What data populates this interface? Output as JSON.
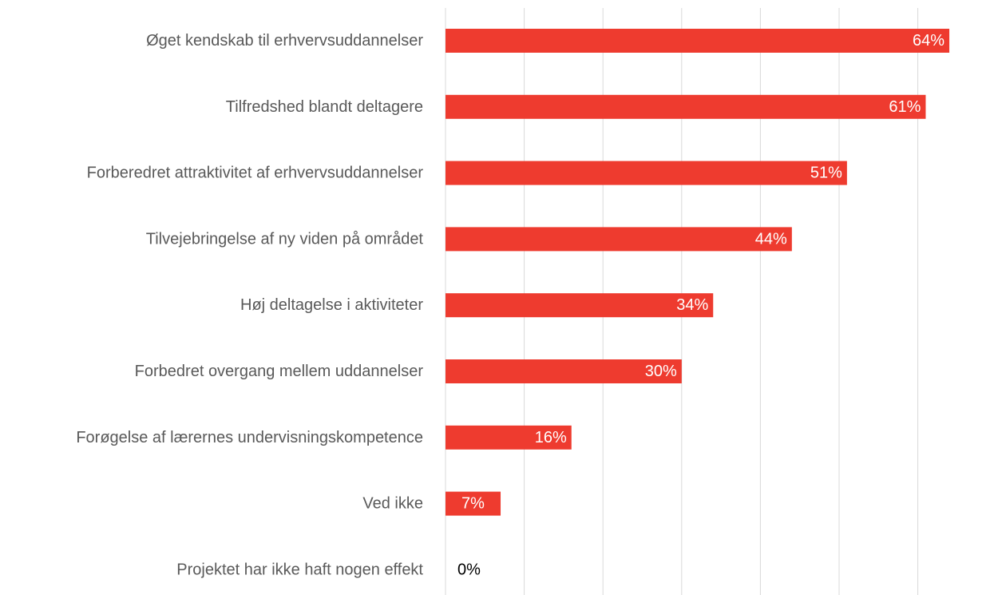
{
  "chart_data": {
    "type": "bar",
    "orientation": "horizontal",
    "categories": [
      "Øget kendskab til erhvervsuddannelser",
      "Tilfredshed blandt deltagere",
      "Forberedret attraktivitet af erhvervsuddannelser",
      "Tilvejebringelse af ny viden på området",
      "Høj deltagelse i aktiviteter",
      "Forbedret overgang mellem uddannelser",
      "Forøgelse af lærernes undervisningskompetence",
      "Ved ikke",
      "Projektet har ikke haft nogen effekt"
    ],
    "values": [
      64,
      61,
      51,
      44,
      34,
      30,
      16,
      7,
      0
    ],
    "data_labels": [
      "64%",
      "61%",
      "51%",
      "44%",
      "34%",
      "30%",
      "16%",
      "7%",
      "0%"
    ],
    "xlim": [
      0,
      70
    ],
    "grid": true,
    "legend": "none",
    "colors": {
      "bar": "#ee3b2f",
      "gridline": "#d9d9d9",
      "label_text": "#595959",
      "data_label_inside": "#ffffff",
      "data_label_outside": "#000000"
    }
  }
}
